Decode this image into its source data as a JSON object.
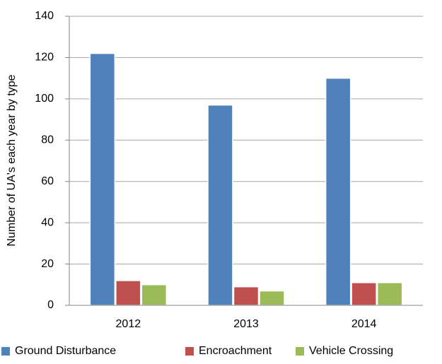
{
  "chart_data": {
    "type": "bar",
    "ylabel": "Number of UA's each year by type",
    "categories": [
      "2012",
      "2013",
      "2014"
    ],
    "series": [
      {
        "name": "Ground Disturbance",
        "color": "#4f81bd",
        "values": [
          122,
          97,
          110
        ]
      },
      {
        "name": "Encroachment",
        "color": "#c0504d",
        "values": [
          12,
          9,
          11
        ]
      },
      {
        "name": "Vehicle Crossing",
        "color": "#9bbb59",
        "values": [
          10,
          7,
          11
        ]
      }
    ],
    "ylim": [
      0,
      140
    ],
    "yticks": [
      0,
      20,
      40,
      60,
      80,
      100,
      120,
      140
    ],
    "grid": true,
    "legend": "bottom"
  }
}
